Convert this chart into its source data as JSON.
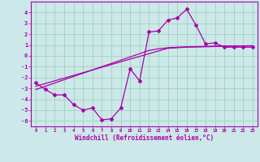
{
  "xlabel": "Windchill (Refroidissement éolien,°C)",
  "ylabel": "",
  "background_color": "#cce8e8",
  "line_color": "#aa00aa",
  "grid_color": "#99ccbb",
  "x_data": [
    0,
    1,
    2,
    3,
    4,
    5,
    6,
    7,
    8,
    9,
    10,
    11,
    12,
    13,
    14,
    15,
    16,
    17,
    18,
    19,
    20,
    21,
    22,
    23
  ],
  "y_main": [
    -2.5,
    -3.1,
    -3.6,
    -3.6,
    -4.5,
    -5.0,
    -4.8,
    -5.9,
    -5.8,
    -4.8,
    -1.2,
    -2.3,
    2.2,
    2.3,
    3.3,
    3.5,
    4.3,
    2.8,
    1.1,
    1.2,
    0.8,
    0.8,
    0.8,
    0.8
  ],
  "y_reg1": [
    -2.8,
    -2.55,
    -2.3,
    -2.05,
    -1.8,
    -1.55,
    -1.3,
    -1.05,
    -0.8,
    -0.55,
    -0.3,
    -0.05,
    0.2,
    0.45,
    0.7,
    0.75,
    0.8,
    0.82,
    0.84,
    0.86,
    0.88,
    0.9,
    0.92,
    0.94
  ],
  "y_reg2": [
    -3.1,
    -2.8,
    -2.5,
    -2.2,
    -1.9,
    -1.6,
    -1.3,
    -1.0,
    -0.7,
    -0.4,
    -0.1,
    0.2,
    0.5,
    0.65,
    0.75,
    0.8,
    0.83,
    0.85,
    0.87,
    0.89,
    0.91,
    0.91,
    0.91,
    0.91
  ],
  "ylim": [
    -6.5,
    5.0
  ],
  "xlim": [
    -0.5,
    23.5
  ],
  "yticks": [
    -6,
    -5,
    -4,
    -3,
    -2,
    -1,
    0,
    1,
    2,
    3,
    4
  ],
  "xticks": [
    0,
    1,
    2,
    3,
    4,
    5,
    6,
    7,
    8,
    9,
    10,
    11,
    12,
    13,
    14,
    15,
    16,
    17,
    18,
    19,
    20,
    21,
    22,
    23
  ]
}
